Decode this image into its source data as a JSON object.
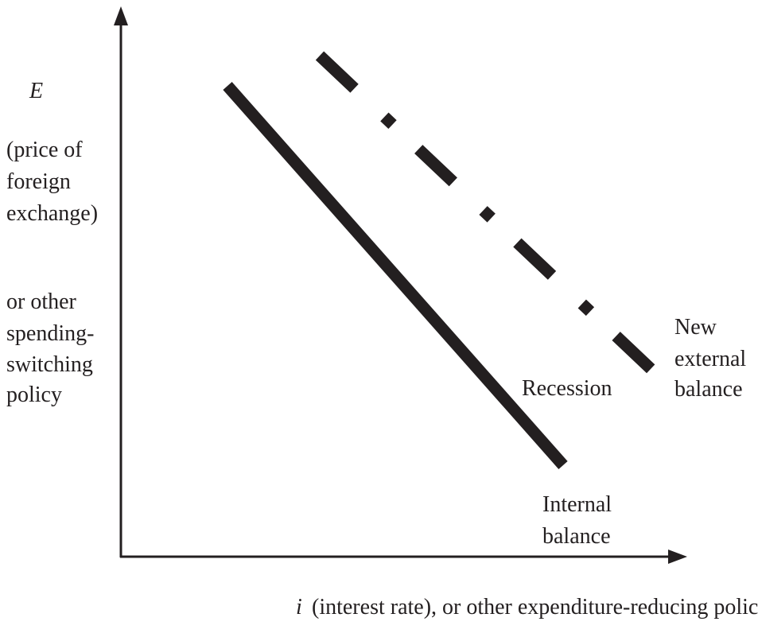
{
  "y_axis": {
    "variable": "E",
    "lines": [
      "(price of",
      "foreign",
      "exchange)",
      "or other",
      "spending-",
      "switching",
      "policy"
    ]
  },
  "x_axis": {
    "variable": "i",
    "description": "(interest rate), or other expenditure-reducing policy"
  },
  "curves": {
    "external": {
      "lines": [
        "New",
        "external",
        "balance"
      ]
    },
    "recession": "Recession",
    "internal": {
      "lines": [
        "Internal",
        "balance"
      ]
    }
  }
}
